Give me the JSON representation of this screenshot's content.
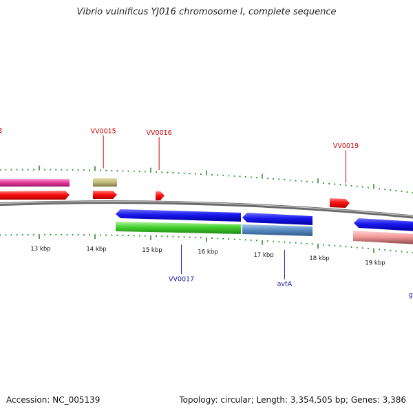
{
  "title": "Vibrio vulnificus YJ016 chromosome I, complete sequence",
  "footer": {
    "accession": "Accession: NC_005139",
    "summary": "Topology: circular; Length: 3,354,505 bp; Genes: 3,386"
  },
  "colors": {
    "label_top": "#cc0000",
    "label_bottom": "#1a1aaa",
    "tick": "#2e8b2e",
    "backbone": "#888888"
  },
  "scale": {
    "unit": "kbp",
    "ticks": [
      {
        "kbp": 13,
        "label": "13 kbp"
      },
      {
        "kbp": 14,
        "label": "14 kbp"
      },
      {
        "kbp": 15,
        "label": "15 kbp"
      },
      {
        "kbp": 16,
        "label": "16 kbp"
      },
      {
        "kbp": 17,
        "label": "17 kbp"
      },
      {
        "kbp": 18,
        "label": "18 kbp"
      },
      {
        "kbp": 19,
        "label": "19 kbp"
      }
    ]
  },
  "gene_labels_top": [
    {
      "name": "gyrB",
      "kbp": 12.2
    },
    {
      "name": "VV0015",
      "kbp": 14.15
    },
    {
      "name": "VV0016",
      "kbp": 15.15
    },
    {
      "name": "VV0019",
      "kbp": 18.5
    }
  ],
  "gene_labels_bottom": [
    {
      "name": "VV0017",
      "kbp": 15.55
    },
    {
      "name": "avtA",
      "kbp": 17.4
    },
    {
      "name": "glyS",
      "kbp": 19.75
    }
  ]
}
